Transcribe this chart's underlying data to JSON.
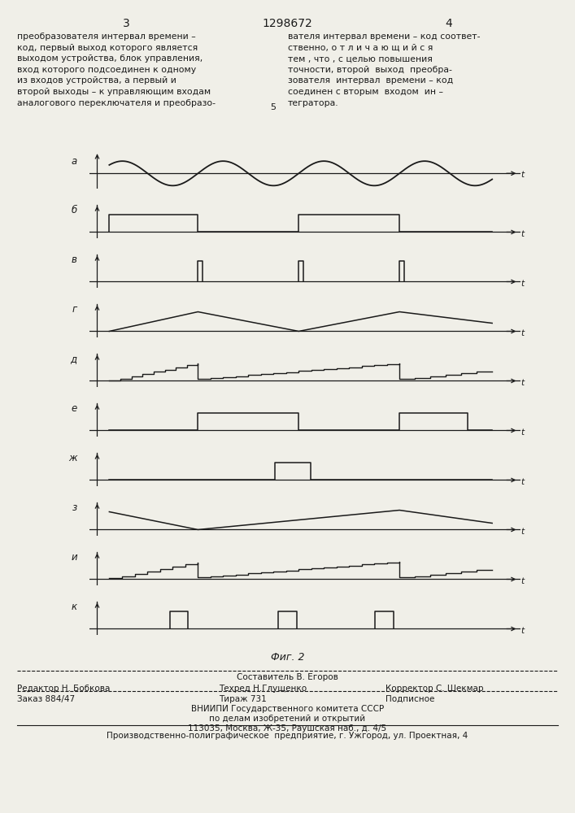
{
  "title_page_num_left": "3",
  "title_patent": "1298672",
  "title_page_num_right": "4",
  "text_left": "преобразователя интервал времени –\nкод, первый выход которого является\nвыходом устройства, блок управления,\nвход которого подсоединен к одному\nиз входов устройства, а первый и\nвторой выходы – к управляющим входам\nаналогового переключателя и преобразо-",
  "text_right": "вателя интервал времени – код соответ-\nственно, о т л и ч а ю щ и й с я\nтем , что , с целью повышения\nточности, второй  выход  преобра-\nзователя  интервал  времени – код\nсоединен с вторым  входом  ин –\nтегратора.",
  "line_num_5": "5",
  "fig_caption": "Фиг. 2",
  "footer_line1": "Составитель В. Егоров",
  "footer_line2_left": "Редактор Н. Бобкова",
  "footer_line2_mid": "Техред Н.Глущенко",
  "footer_line2_right": "Корректор С. Шекмар",
  "footer_line3_left": "Заказ 884/47",
  "footer_line3_mid": "Тираж 731",
  "footer_line3_right": "Подписное",
  "footer_line4": "ВНИИПИ Государственного комитета СССР",
  "footer_line5": "по делам изобретений и открытий",
  "footer_line6": "113035, Москва, Ж-35, Раушская наб., д. 4/5",
  "footer_line7": "Производственно-полиграфическое  предприятие, г. Ужгород, ул. Проектная, 4",
  "channel_labels": [
    "а",
    "б",
    "в",
    "г",
    "д",
    "е",
    "ж",
    "з",
    "и",
    "к"
  ],
  "bg_color": "#f0efe8",
  "line_color": "#1a1a1a",
  "text_color": "#1a1a1a"
}
